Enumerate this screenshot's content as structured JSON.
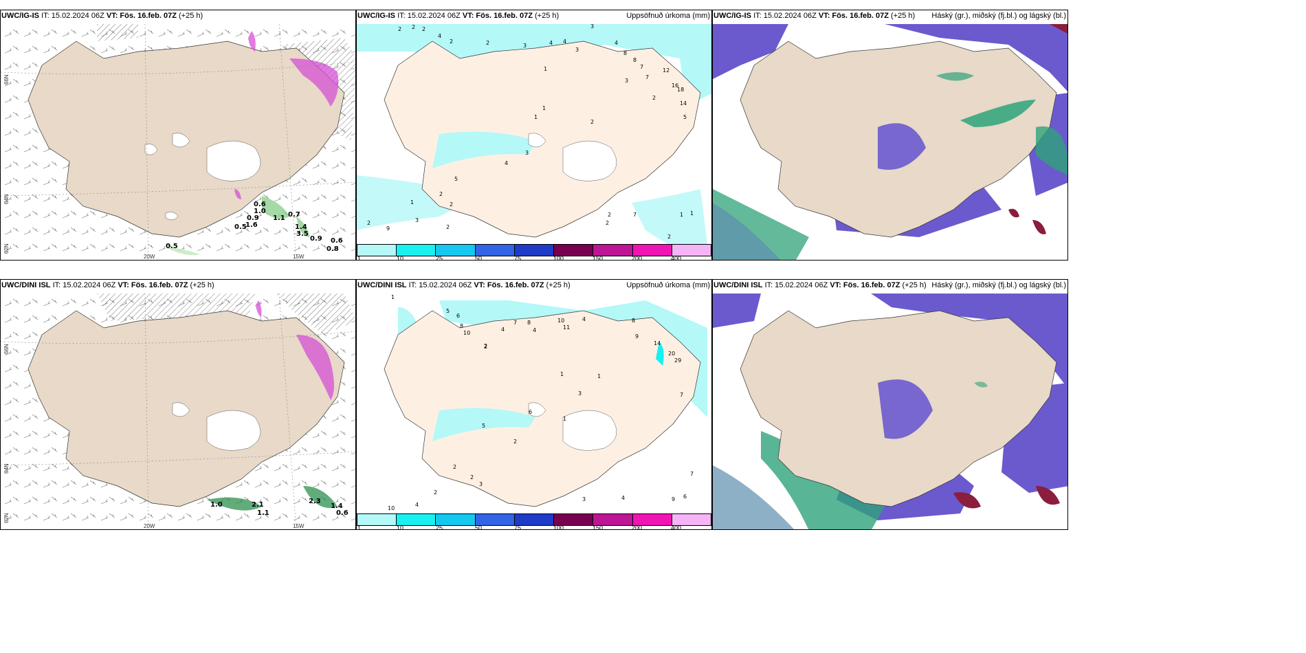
{
  "panels": [
    {
      "model_label": "UWC/IG-IS",
      "it_label": "IT: 15.02.2024 06Z",
      "vt_label": "VT: Fös. 16.feb. 07Z",
      "lead_label": "(+25 h)",
      "right_title": ""
    },
    {
      "model_label": "UWC/IG-IS",
      "it_label": "IT: 15.02.2024 06Z",
      "vt_label": "VT: Fös. 16.feb. 07Z",
      "lead_label": "(+25 h)",
      "right_title": "Uppsöfnuð úrkoma (mm)"
    },
    {
      "model_label": "UWC/IG-IS",
      "it_label": "IT: 15.02.2024 06Z",
      "vt_label": "VT: Fös. 16.feb. 07Z",
      "lead_label": "(+25 h)",
      "right_title": "Háský (gr.), miðský (fj.bl.) og lágský (bl.)"
    },
    {
      "model_label": "UWC/DINI ISL",
      "it_label": "IT: 15.02.2024 06Z",
      "vt_label": "VT: Fös. 16.feb. 07Z",
      "lead_label": "(+25 h)",
      "right_title": ""
    },
    {
      "model_label": "UWC/DINI ISL",
      "it_label": "IT: 15.02.2024 06Z",
      "vt_label": "VT: Fös. 16.feb. 07Z",
      "lead_label": "(+25 h)",
      "right_title": "Uppsöfnuð úrkoma (mm)"
    },
    {
      "model_label": "UWC/DINI ISL",
      "it_label": "IT: 15.02.2024 06Z",
      "vt_label": "VT: Fös. 16.feb. 07Z",
      "lead_label": "(+25 h)",
      "right_title": "Háský (gr.), miðský (fj.bl.) og lágský (bl.)"
    }
  ],
  "axis_labels": {
    "lat_66": "66N",
    "lat_64": "64N",
    "lat_62": "62N",
    "lon_20": "20W",
    "lon_15": "15W"
  },
  "precip_colorbar": {
    "ticks": [
      "1",
      "10",
      "25",
      "50",
      "75",
      "100",
      "150",
      "200",
      "400"
    ],
    "colors": [
      "#b4f8f8",
      "#19f0f0",
      "#14c8f0",
      "#3264e6",
      "#1e3cc8",
      "#780050",
      "#be1496",
      "#f014b4",
      "#f5b4f5"
    ]
  },
  "top_wind_numbers": [
    "0.6",
    "1.0",
    "0.9",
    "1.6",
    "0.5",
    "1.1",
    "0.7",
    "1.4",
    "3.5",
    "0.9",
    "0.6",
    "0.8",
    "0.5"
  ],
  "bottom_wind_numbers": [
    "1.0",
    "2.1",
    "1.1",
    "2.3",
    "1.4",
    "0.6"
  ],
  "top_precip_numbers": [
    "2",
    "2",
    "2",
    "4",
    "2",
    "2",
    "3",
    "3",
    "4",
    "4",
    "3",
    "4",
    "8",
    "8",
    "7",
    "7",
    "12",
    "16",
    "18",
    "14",
    "5",
    "3",
    "2",
    "1",
    "1",
    "1",
    "2",
    "3",
    "4",
    "5",
    "2",
    "2",
    "1",
    "3",
    "2",
    "9",
    "2",
    "2",
    "7",
    "1",
    "1",
    "2",
    "2"
  ],
  "bottom_precip_numbers": [
    "1",
    "5",
    "6",
    "10",
    "8",
    "2",
    "4",
    "7",
    "8",
    "10",
    "11",
    "4",
    "4",
    "8",
    "9",
    "14",
    "20",
    "29",
    "7",
    "1",
    "1",
    "2",
    "3",
    "5",
    "2",
    "6",
    "1",
    "2",
    "2",
    "3",
    "2",
    "10",
    "4",
    "3",
    "9",
    "6",
    "7",
    "4"
  ],
  "colors": {
    "land": "#f5e6d8",
    "ocean": "#ffffff",
    "coast": "#222222",
    "precip_light": "#b4f8f8",
    "high_cloud": "#6a5ace",
    "mid_cloud": "#2ea37a",
    "low_cloud": "#8a1e3c",
    "glacier": "#ffffff",
    "pink_precip": "#d64fd6"
  }
}
